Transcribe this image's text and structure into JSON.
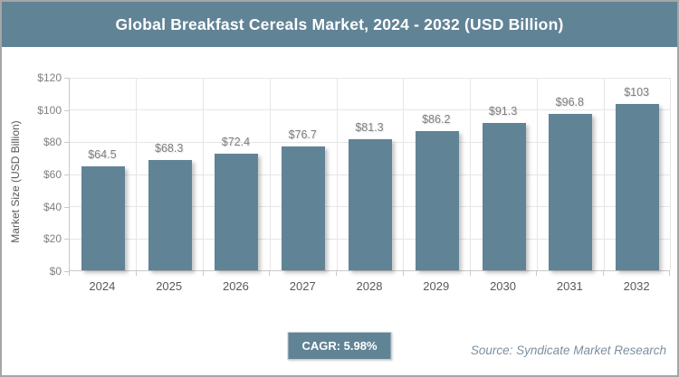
{
  "header": {
    "title": "Global Breakfast Cereals Market, 2024 - 2032 (USD Billion)"
  },
  "chart_data": {
    "type": "bar",
    "title": "Global Breakfast Cereals Market, 2024 - 2032 (USD Billion)",
    "categories": [
      "2024",
      "2025",
      "2026",
      "2027",
      "2028",
      "2029",
      "2030",
      "2031",
      "2032"
    ],
    "values": [
      64.5,
      68.3,
      72.4,
      76.7,
      81.3,
      86.2,
      91.3,
      96.8,
      103
    ],
    "value_labels": [
      "$64.5",
      "$68.3",
      "$72.4",
      "$76.7",
      "$81.3",
      "$86.2",
      "$91.3",
      "$96.8",
      "$103"
    ],
    "xlabel": "",
    "ylabel": "Market Size (USD Billion)",
    "ylim": [
      0,
      120
    ],
    "ytick_step": 20,
    "ytick_labels": [
      "$0",
      "$20",
      "$40",
      "$60",
      "$80",
      "$100",
      "$120"
    ],
    "grid": true,
    "legend": "none",
    "bar_color": "#618396"
  },
  "footer": {
    "cagr_label": "CAGR: 5.98%",
    "source": "Source: Syndicate Market Research"
  },
  "colors": {
    "accent": "#618396",
    "frame-border": "#a6a6a6",
    "grid": "#e6e6e6",
    "axis": "#c9c9c9",
    "val-text": "#7f7f7f",
    "tick-text": "#595959",
    "ytick-text": "#7f7f7f",
    "source-text": "#7b8f9f"
  }
}
